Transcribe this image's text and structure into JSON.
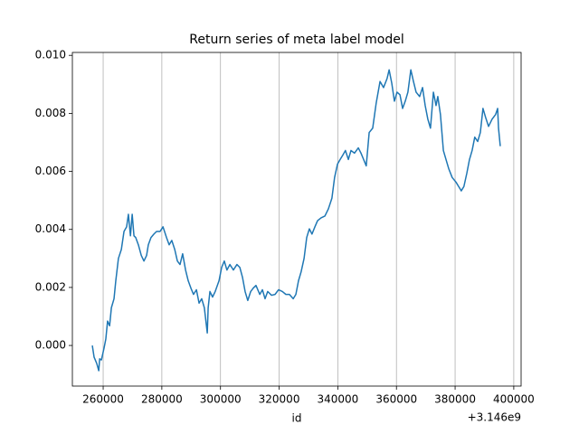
{
  "chart_data": {
    "type": "line",
    "title": "Return series of meta label model",
    "xlabel": "id",
    "x_offset_label": "+3.146e9",
    "x": [
      256300,
      256900,
      257800,
      258500,
      258800,
      259400,
      260300,
      260900,
      261500,
      262200,
      262800,
      263700,
      264300,
      265200,
      266200,
      267100,
      268000,
      268600,
      269300,
      269900,
      270500,
      271100,
      272000,
      273000,
      273900,
      274800,
      275400,
      276300,
      277300,
      278200,
      279400,
      280400,
      281600,
      282500,
      283400,
      284400,
      285300,
      286200,
      287100,
      288100,
      289000,
      289900,
      290800,
      291800,
      292700,
      293600,
      294500,
      295500,
      295800,
      296400,
      297300,
      298200,
      299500,
      300400,
      301300,
      302200,
      303200,
      304400,
      305600,
      306600,
      307500,
      308400,
      309300,
      310300,
      311200,
      312100,
      313400,
      314300,
      315200,
      316100,
      317400,
      318600,
      319800,
      321100,
      322300,
      323500,
      324800,
      325700,
      326600,
      327500,
      328500,
      329400,
      330300,
      331200,
      332200,
      333100,
      334300,
      335600,
      336800,
      338000,
      338900,
      339900,
      340800,
      341700,
      342600,
      343600,
      344500,
      345700,
      347000,
      347900,
      348800,
      349700,
      350700,
      351900,
      353100,
      354400,
      355600,
      356800,
      357500,
      358400,
      359300,
      360200,
      361200,
      362100,
      363000,
      363900,
      364900,
      365800,
      366700,
      367900,
      368900,
      369800,
      370700,
      371600,
      372600,
      373500,
      374100,
      375000,
      376000,
      376900,
      377800,
      379000,
      380300,
      381200,
      382100,
      383000,
      384000,
      384900,
      385800,
      386700,
      387700,
      388600,
      389500,
      390400,
      391400,
      392600,
      393800,
      394500,
      394800,
      395400
    ],
    "series": [
      {
        "color": "#1f77b4",
        "values": [
          0,
          -0.0004,
          -0.00062,
          -0.00087,
          -0.00046,
          -0.0005,
          -9e-05,
          0.00022,
          0.00084,
          0.00068,
          0.0013,
          0.00161,
          0.00223,
          0.003,
          0.00331,
          0.00393,
          0.00409,
          0.00452,
          0.00378,
          0.00452,
          0.00378,
          0.00372,
          0.00347,
          0.0031,
          0.00291,
          0.0031,
          0.00347,
          0.00372,
          0.00384,
          0.00393,
          0.00393,
          0.00409,
          0.00372,
          0.00347,
          0.00362,
          0.00331,
          0.00291,
          0.00279,
          0.00316,
          0.0026,
          0.00223,
          0.00198,
          0.00176,
          0.00192,
          0.00146,
          0.00161,
          0.0013,
          0.00043,
          0.0013,
          0.00186,
          0.00167,
          0.00186,
          0.00223,
          0.00269,
          0.00291,
          0.0026,
          0.00279,
          0.0026,
          0.00279,
          0.00269,
          0.00235,
          0.00186,
          0.00155,
          0.00186,
          0.00198,
          0.00207,
          0.00176,
          0.00192,
          0.00161,
          0.00186,
          0.00173,
          0.00176,
          0.00192,
          0.00186,
          0.00176,
          0.00176,
          0.00161,
          0.00176,
          0.00223,
          0.00254,
          0.003,
          0.00372,
          0.00402,
          0.00384,
          0.00409,
          0.0043,
          0.0044,
          0.00446,
          0.00471,
          0.00508,
          0.00579,
          0.00625,
          0.00641,
          0.00656,
          0.00672,
          0.00641,
          0.00672,
          0.00663,
          0.00681,
          0.00663,
          0.00641,
          0.00619,
          0.00734,
          0.00749,
          0.00836,
          0.0091,
          0.00889,
          0.0092,
          0.0095,
          0.00904,
          0.00842,
          0.00873,
          0.00864,
          0.00817,
          0.00842,
          0.00873,
          0.0095,
          0.0091,
          0.00873,
          0.00858,
          0.00889,
          0.00827,
          0.0078,
          0.00749,
          0.00873,
          0.00827,
          0.00858,
          0.00796,
          0.00672,
          0.00641,
          0.0061,
          0.00579,
          0.00563,
          0.00548,
          0.00533,
          0.00548,
          0.00594,
          0.00641,
          0.00672,
          0.00718,
          0.00703,
          0.00734,
          0.00817,
          0.00786,
          0.00755,
          0.0078,
          0.00796,
          0.00817,
          0.00749,
          0.00687
        ]
      }
    ],
    "xlim": [
      249500,
      402500
    ],
    "xticks": [
      260000,
      280000,
      300000,
      320000,
      340000,
      360000,
      380000,
      400000
    ],
    "ylim": [
      -0.0014,
      0.0101
    ],
    "yticks": [
      {
        "value": 0,
        "label": "0.000"
      },
      0.002,
      0.004,
      0.006,
      0.008,
      {
        "value": 0.01,
        "label": "0.010"
      }
    ],
    "grid": "x"
  }
}
